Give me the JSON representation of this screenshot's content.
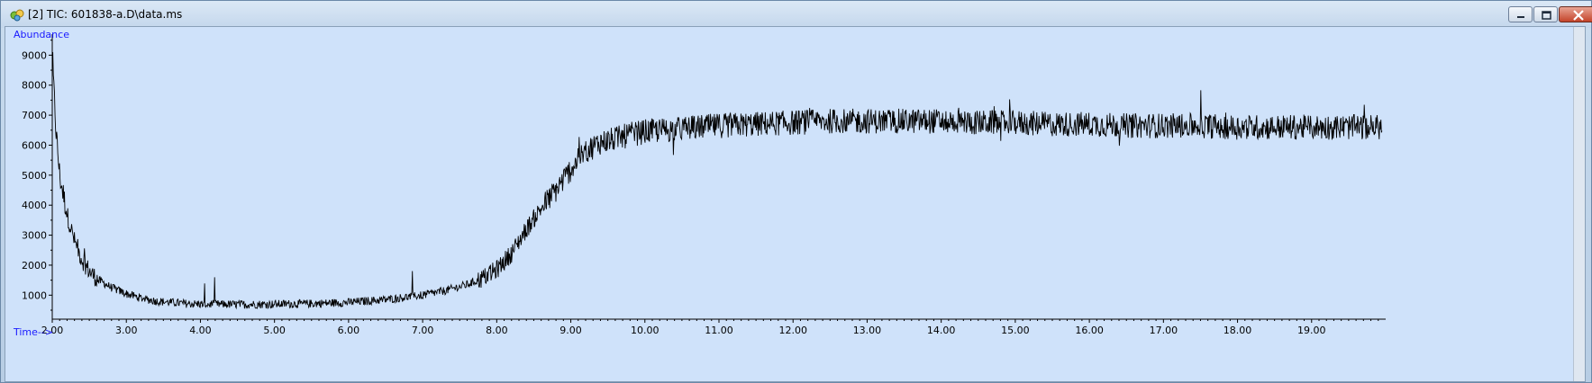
{
  "window": {
    "title": "[2] TIC: 601838-a.D\\data.ms",
    "icon": "chromatogram-app-icon",
    "buttons": [
      "minimize-icon",
      "restore-icon",
      "close-icon"
    ]
  },
  "chart_data": {
    "type": "line",
    "title": "",
    "xlabel": "Time-->",
    "ylabel": "Abundance",
    "xlim": [
      2.0,
      20.0
    ],
    "ylim": [
      200,
      9700
    ],
    "xticks": [
      "2.00",
      "3.00",
      "4.00",
      "5.00",
      "6.00",
      "7.00",
      "8.00",
      "9.00",
      "10.00",
      "11.00",
      "12.00",
      "13.00",
      "14.00",
      "15.00",
      "16.00",
      "17.00",
      "18.00",
      "19.00"
    ],
    "yticks": [
      "1000",
      "2000",
      "3000",
      "4000",
      "5000",
      "6000",
      "7000",
      "8000",
      "9000"
    ],
    "grid": false,
    "legend": "none",
    "line_color": "#000000",
    "series": [
      {
        "x": [
          2.0,
          2.05,
          2.1,
          2.2,
          2.3,
          2.4,
          2.5,
          2.6,
          2.8,
          3.0,
          3.2,
          3.4,
          3.6,
          3.8,
          4.0,
          4.5,
          5.0,
          5.5,
          6.0,
          6.5,
          7.0,
          7.3,
          7.6,
          7.8,
          8.0,
          8.2,
          8.4,
          8.6,
          8.8,
          9.0,
          9.2,
          9.4,
          9.6,
          9.8,
          10.0,
          10.5,
          11.0,
          11.5,
          12.0,
          12.5,
          13.0,
          13.5,
          14.0,
          14.5,
          15.0,
          15.5,
          16.0,
          16.5,
          17.0,
          17.5,
          18.0,
          18.5,
          19.0,
          19.5,
          20.0
        ],
        "values": [
          8900,
          6500,
          5000,
          3700,
          2800,
          2200,
          1800,
          1550,
          1250,
          1050,
          900,
          800,
          760,
          720,
          700,
          690,
          700,
          720,
          760,
          850,
          1000,
          1150,
          1350,
          1550,
          1850,
          2400,
          3200,
          3900,
          4500,
          5200,
          5800,
          6100,
          6200,
          6350,
          6450,
          6550,
          6650,
          6700,
          6750,
          6800,
          6800,
          6800,
          6800,
          6750,
          6750,
          6700,
          6700,
          6650,
          6650,
          6650,
          6600,
          6600,
          6600,
          6600,
          6600
        ]
      }
    ]
  }
}
